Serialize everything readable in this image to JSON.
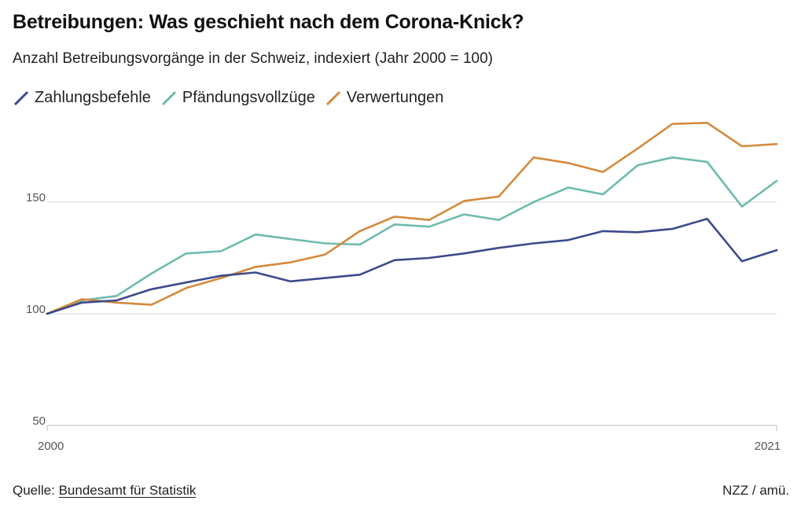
{
  "header": {
    "title": "Betreibungen: Was geschieht nach dem Corona-Knick?",
    "subtitle": "Anzahl Betreibungsvorgänge in der Schweiz, indexiert (Jahr 2000 = 100)"
  },
  "footer": {
    "source_prefix": "Quelle: ",
    "source_link": "Bundesamt für Statistik",
    "credit": "NZZ / amü."
  },
  "chart_data": {
    "type": "line",
    "title": "Betreibungen: Was geschieht nach dem Corona-Knick?",
    "subtitle": "Anzahl Betreibungsvorgänge in der Schweiz, indexiert (Jahr 2000 = 100)",
    "xlabel": "",
    "ylabel": "",
    "x": [
      2000,
      2001,
      2002,
      2003,
      2004,
      2005,
      2006,
      2007,
      2008,
      2009,
      2010,
      2011,
      2012,
      2013,
      2014,
      2015,
      2016,
      2017,
      2018,
      2019,
      2020,
      2021
    ],
    "xlim": [
      2000,
      2021
    ],
    "x_ticks": [
      "2000",
      "2021"
    ],
    "ylim": [
      50,
      200
    ],
    "y_ticks": [
      "50",
      "100",
      "150"
    ],
    "y_tick_values": [
      50,
      100,
      150
    ],
    "grid": true,
    "legend": "top-left",
    "series": [
      {
        "name": "Zahlungsbefehle",
        "color": "#3d4a8a",
        "values": [
          100,
          105,
          106,
          111,
          114,
          117,
          118.5,
          114.5,
          116,
          117.5,
          124,
          125,
          127,
          129.5,
          131.5,
          133,
          137,
          136.5,
          138,
          142.5,
          123.5,
          128.5
        ]
      },
      {
        "name": "Pfändungsvollzüge",
        "color": "#6dbbae",
        "values": [
          100,
          106,
          108,
          118,
          127,
          128,
          135.5,
          133.5,
          131.5,
          131,
          140,
          139,
          144.5,
          142,
          150,
          156.5,
          153.5,
          166.5,
          170,
          168,
          148,
          159.5
        ]
      },
      {
        "name": "Verwertungen",
        "color": "#d48a3c",
        "values": [
          100,
          106.5,
          105,
          104,
          111.5,
          116,
          121,
          123,
          126.5,
          137,
          143.5,
          142,
          150.5,
          152.5,
          170,
          167.5,
          163.5,
          174,
          185,
          185.5,
          175,
          176
        ]
      }
    ]
  }
}
